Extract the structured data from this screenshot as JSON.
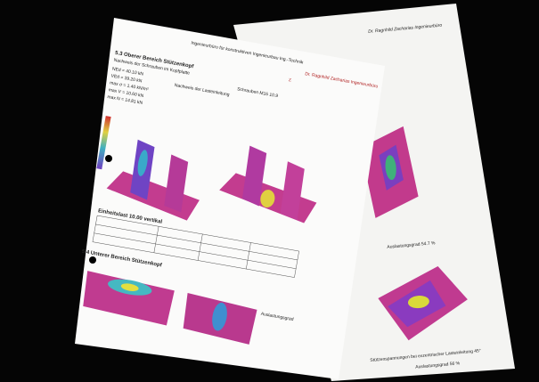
{
  "photo": {
    "front_page": {
      "header": "Ingenieurbüro für konstruktiven Ingenieurbau Ing.-Technik",
      "logo": "Z",
      "firm": "Dr. Ragnhild Zacharias Ingenieurbüro",
      "section": "5.3 Oberer Bereich Stützenkopf",
      "subtitle": "Nachweis der Schrauben im Kopfplatte",
      "bolts": "Schrauben M16 10.9",
      "load_check": "Nachweis der Lasteinleitung",
      "lines": [
        "NEd = 40.10 kN",
        "VEd = 39.20 kN",
        "max σ = 1.40 kN/m²",
        "max V = 10.60 kN",
        "max N = 14.81 kN"
      ],
      "table_title": "Einheitslast 10.00 vertikal",
      "section2": "5.4 Unterer Bereich Stützenkopf",
      "utilization": "Auslastungsgrad"
    },
    "back_page": {
      "firm": "Dr. Ragnhild Zacharias Ingenieurbüro",
      "util": "Auslastungsgrad 54.7 %",
      "caption": "Stützenspannungen bei exzentrischer Lasteinleitung 45°",
      "footer": "Auslastungsgrad 56 %"
    }
  }
}
